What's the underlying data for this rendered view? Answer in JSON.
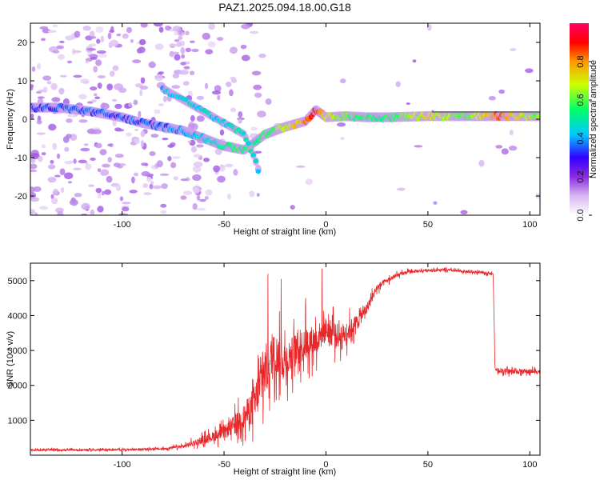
{
  "title": "PAZ1.2025.094.18.00.G18",
  "chart_data": [
    {
      "type": "heatmap",
      "xlabel": "Height of straight line (km)",
      "ylabel": "Frequency (Hz)",
      "xlim": [
        -145,
        105
      ],
      "ylim": [
        -25,
        25
      ],
      "xticks": [
        -100,
        -50,
        0,
        50,
        100
      ],
      "xtick_labels": [
        "-100",
        "-50",
        "0",
        "50",
        "100"
      ],
      "yticks": [
        -20,
        -10,
        0,
        10,
        20
      ],
      "ytick_labels": [
        "-20",
        "-10",
        "0",
        "10",
        "20"
      ],
      "colorbar": {
        "label": "Normalized spectral amplitude",
        "range": [
          0.0,
          1.0
        ],
        "ticks": [
          0.0,
          0.2,
          0.4,
          0.6,
          0.8
        ],
        "tick_labels": [
          "0.0",
          "0.2",
          "0.4",
          "0.6",
          "0.8"
        ],
        "colormap": [
          "#ffffff",
          "#d8b8f0",
          "#8a2be2",
          "#3300ff",
          "#00c8ff",
          "#00ff66",
          "#ccff00",
          "#ff9900",
          "#ff0000",
          "#ff0066"
        ]
      },
      "ridge": [
        {
          "x": -145,
          "y": 3,
          "a": 0.3
        },
        {
          "x": -130,
          "y": 3,
          "a": 0.35
        },
        {
          "x": -115,
          "y": 2,
          "a": 0.35
        },
        {
          "x": -100,
          "y": 0.5,
          "a": 0.35
        },
        {
          "x": -90,
          "y": -1,
          "a": 0.35
        },
        {
          "x": -80,
          "y": -2,
          "a": 0.35
        },
        {
          "x": -70,
          "y": -3,
          "a": 0.4
        },
        {
          "x": -60,
          "y": -5,
          "a": 0.45
        },
        {
          "x": -50,
          "y": -7,
          "a": 0.5
        },
        {
          "x": -45,
          "y": -7.5,
          "a": 0.55
        },
        {
          "x": -40,
          "y": -8,
          "a": 0.55
        },
        {
          "x": -35,
          "y": -6,
          "a": 0.5
        },
        {
          "x": -30,
          "y": -4,
          "a": 0.55
        },
        {
          "x": -20,
          "y": -2,
          "a": 0.65
        },
        {
          "x": -10,
          "y": -0.5,
          "a": 0.8
        },
        {
          "x": -5,
          "y": 2.5,
          "a": 0.9
        },
        {
          "x": 0,
          "y": 0.5,
          "a": 0.7
        },
        {
          "x": 10,
          "y": 0.8,
          "a": 0.6
        },
        {
          "x": 20,
          "y": 0.5,
          "a": 0.55
        },
        {
          "x": 30,
          "y": 0.5,
          "a": 0.55
        },
        {
          "x": 50,
          "y": 0.8,
          "a": 0.7
        },
        {
          "x": 70,
          "y": 0.8,
          "a": 0.6
        },
        {
          "x": 85,
          "y": 0.8,
          "a": 0.85
        },
        {
          "x": 95,
          "y": 0.8,
          "a": 0.7
        },
        {
          "x": 105,
          "y": 0.8,
          "a": 0.6
        }
      ],
      "branch": [
        {
          "x": -80,
          "y": 8,
          "a": 0.4
        },
        {
          "x": -70,
          "y": 5,
          "a": 0.45
        },
        {
          "x": -60,
          "y": 2,
          "a": 0.45
        },
        {
          "x": -50,
          "y": -1,
          "a": 0.45
        },
        {
          "x": -40,
          "y": -4,
          "a": 0.5
        },
        {
          "x": -35,
          "y": -10,
          "a": 0.45
        },
        {
          "x": -32,
          "y": -15,
          "a": 0.35
        }
      ]
    },
    {
      "type": "line",
      "xlabel": "Height of straight line (km)",
      "ylabel": "SNR (10 * v/v)",
      "xlim": [
        -145,
        105
      ],
      "ylim": [
        0,
        5500
      ],
      "xticks": [
        -100,
        -50,
        0,
        50,
        100
      ],
      "xtick_labels": [
        "-100",
        "-50",
        "0",
        "50",
        "100"
      ],
      "yticks": [
        1000,
        2000,
        3000,
        4000,
        5000
      ],
      "ytick_labels": [
        "1000",
        "2000",
        "3000",
        "4000",
        "5000"
      ],
      "color": "#e8272a",
      "x": [
        -145,
        -120,
        -100,
        -80,
        -70,
        -60,
        -50,
        -40,
        -35,
        -30,
        -25,
        -20,
        -15,
        -10,
        -5,
        0,
        5,
        10,
        15,
        20,
        25,
        30,
        35,
        40,
        50,
        60,
        70,
        80,
        82,
        83,
        90,
        100,
        105
      ],
      "y": [
        150,
        150,
        160,
        180,
        250,
        450,
        650,
        1100,
        1500,
        2400,
        2900,
        2700,
        3000,
        3200,
        3300,
        3600,
        3400,
        3500,
        3800,
        4200,
        4800,
        5000,
        5150,
        5250,
        5300,
        5300,
        5250,
        5220,
        5200,
        2450,
        2400,
        2400,
        2400
      ],
      "noise": [
        40,
        40,
        40,
        50,
        90,
        180,
        300,
        600,
        900,
        1300,
        1000,
        900,
        800,
        800,
        700,
        600,
        600,
        500,
        400,
        250,
        180,
        120,
        100,
        80,
        60,
        60,
        60,
        60,
        60,
        120,
        120,
        120,
        120
      ],
      "spikes": [
        {
          "x": -28.5,
          "y": 5200
        },
        {
          "x": -22,
          "y": 5050
        },
        {
          "x": -2,
          "y": 5350
        },
        {
          "x": 3.5,
          "y": 4250
        },
        {
          "x": -10,
          "y": 4500
        }
      ]
    }
  ]
}
